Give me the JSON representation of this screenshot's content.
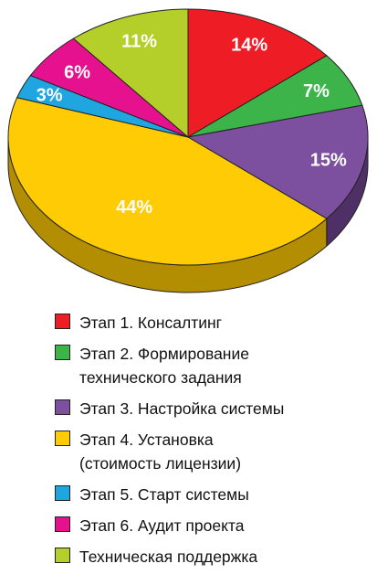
{
  "chart_data": {
    "type": "pie",
    "title": "",
    "slices": [
      {
        "label": "Этап 1. Консалтинг",
        "value": 14,
        "display": "14%",
        "color": "#ee1c25",
        "side": "#a8141a"
      },
      {
        "label": "Этап 2. Формирование\nтехнического задания",
        "value": 7,
        "display": "7%",
        "color": "#3cb44a",
        "side": "#287a32"
      },
      {
        "label": "Этап 3. Настройка системы",
        "value": 15,
        "display": "15%",
        "color": "#7c4f9f",
        "side": "#4e2f66"
      },
      {
        "label": "Этап 4. Установка\n(стоимость лицензии)",
        "value": 44,
        "display": "44%",
        "color": "#ffcb05",
        "side": "#b38e03"
      },
      {
        "label": "Этап 5. Старт системы",
        "value": 3,
        "display": "3%",
        "color": "#1fa5e0",
        "side": "#14739e"
      },
      {
        "label": "Этап 6. Аудит проекта",
        "value": 6,
        "display": "6%",
        "color": "#e6118f",
        "side": "#a00c63"
      },
      {
        "label": "Техническая поддержка",
        "value": 11,
        "display": "11%",
        "color": "#b5cf2a",
        "side": "#7e911d"
      }
    ],
    "legend_placement": "bottom"
  }
}
